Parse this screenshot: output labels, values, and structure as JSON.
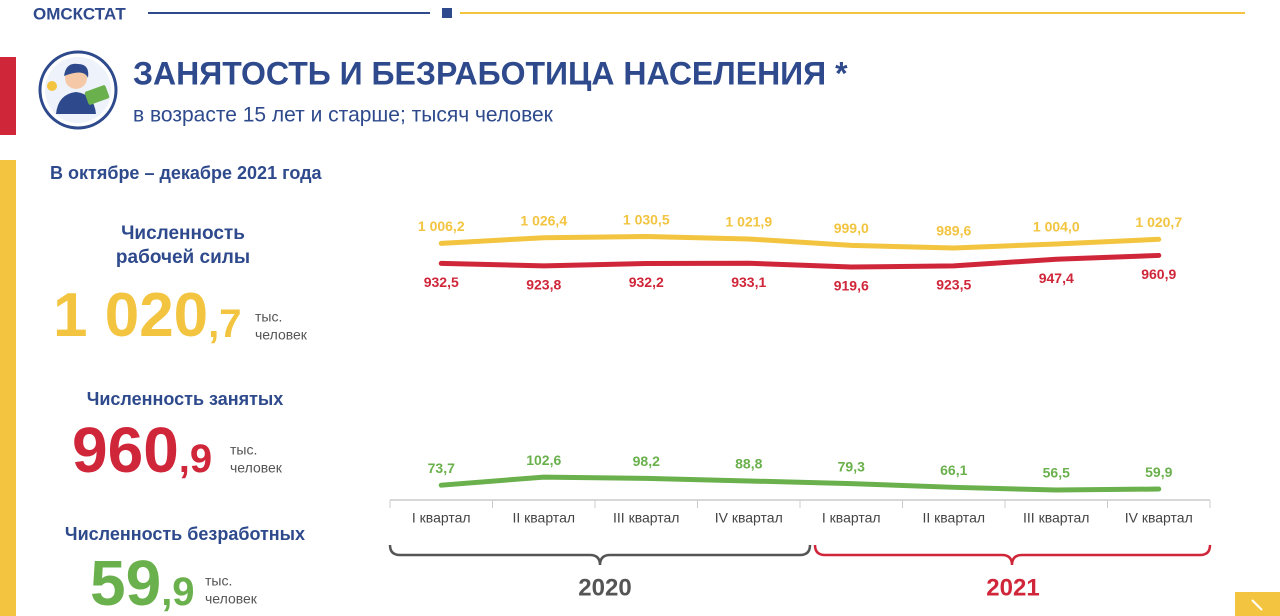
{
  "header": {
    "brand": "ОМСКСТАТ",
    "title": "ЗАНЯТОСТЬ И БЕЗРАБОТИЦА НАСЕЛЕНИЯ *",
    "subtitle": "в возрасте 15 лет и старше; тысяч человек",
    "period": "В октябре – декабре 2021 года"
  },
  "summary": [
    {
      "label": [
        "Численность",
        "рабочей силы"
      ],
      "integer": "1 020",
      "decimal": ",7",
      "unit": [
        "тыс.",
        "человек"
      ]
    },
    {
      "label": [
        "Численность занятых"
      ],
      "integer": "960",
      "decimal": ",9",
      "unit": [
        "тыс.",
        "человек"
      ]
    },
    {
      "label": [
        "Численность безработных"
      ],
      "integer": "59",
      "decimal": ",9",
      "unit": [
        "тыс.",
        "человек"
      ]
    }
  ],
  "chart_data": {
    "type": "line",
    "categories": [
      "I квартал",
      "II квартал",
      "III квартал",
      "IV квартал",
      "I квартал",
      "II квартал",
      "III квартал",
      "IV квартал"
    ],
    "category_groups": [
      "2020",
      "2021"
    ],
    "series": [
      {
        "color": "#f2c440",
        "values": [
          1006.2,
          1026.4,
          1030.5,
          1021.9,
          999.0,
          989.6,
          1004.0,
          1020.7
        ],
        "value_labels": [
          "1 006,2",
          "1 026,4",
          "1 030,5",
          "1 021,9",
          "999,0",
          "989,6",
          "1 004,0",
          "1 020,7"
        ]
      },
      {
        "color": "#d0263a",
        "values": [
          932.5,
          923.8,
          932.2,
          933.1,
          919.6,
          923.5,
          947.4,
          960.9
        ],
        "value_labels": [
          "932,5",
          "923,8",
          "932,2",
          "933,1",
          "919,6",
          "923,5",
          "947,4",
          "960,9"
        ]
      },
      {
        "color": "#6ab04c",
        "values": [
          73.7,
          102.6,
          98.2,
          88.8,
          79.3,
          66.1,
          56.5,
          59.9
        ],
        "value_labels": [
          "73,7",
          "102,6",
          "98,2",
          "88,8",
          "79,3",
          "66,1",
          "56,5",
          "59,9"
        ]
      }
    ]
  }
}
